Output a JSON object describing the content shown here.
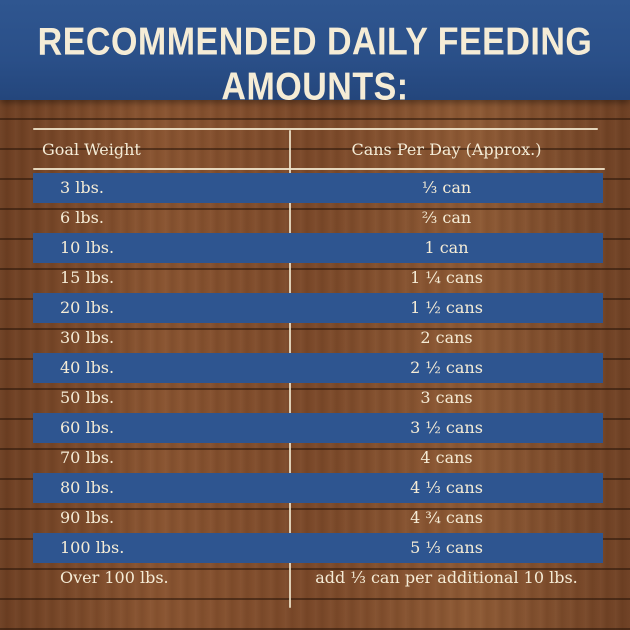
{
  "title": "RECOMMENDED DAILY FEEDING AMOUNTS:",
  "table": {
    "headers": {
      "weight": "Goal Weight",
      "cans": "Cans Per Day (Approx.)"
    },
    "rows": [
      {
        "weight": "3 lbs.",
        "cans": "⅓ can"
      },
      {
        "weight": "6 lbs.",
        "cans": "⅔ can"
      },
      {
        "weight": "10 lbs.",
        "cans": "1 can"
      },
      {
        "weight": "15 lbs.",
        "cans": "1 ¼ cans"
      },
      {
        "weight": "20 lbs.",
        "cans": "1 ½ cans"
      },
      {
        "weight": "30 lbs.",
        "cans": "2 cans"
      },
      {
        "weight": "40 lbs.",
        "cans": "2 ½ cans"
      },
      {
        "weight": "50 lbs.",
        "cans": "3 cans"
      },
      {
        "weight": "60 lbs.",
        "cans": "3 ½ cans"
      },
      {
        "weight": "70 lbs.",
        "cans": "4 cans"
      },
      {
        "weight": "80 lbs.",
        "cans": "4 ⅓ cans"
      },
      {
        "weight": "90 lbs.",
        "cans": "4 ¾ cans"
      },
      {
        "weight": "100 lbs.",
        "cans": "5 ⅓ cans"
      },
      {
        "weight": "Over 100 lbs.",
        "cans": "add ⅓ can per additional 10 lbs."
      }
    ]
  },
  "colors": {
    "header_blue": "#2f5690",
    "stripe_blue": "#2e5590",
    "wood_brown": "#7a4a2a",
    "chalk_text": "#f5ecd6"
  }
}
